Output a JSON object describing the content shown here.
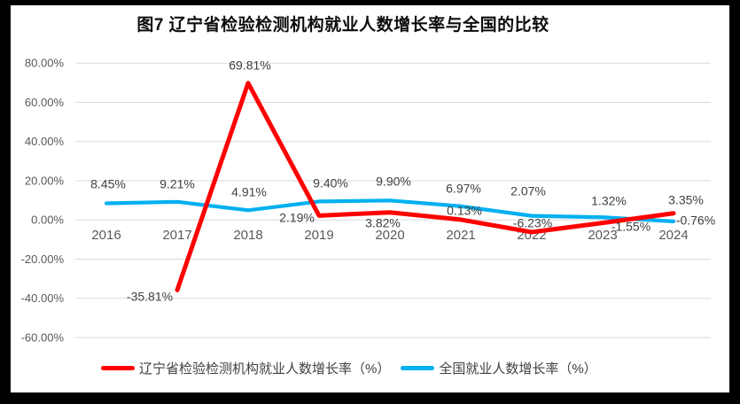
{
  "page": {
    "title": "图7  辽宁省检验检测机构就业人数增长率与全国的比较"
  },
  "chart_data": {
    "type": "line",
    "title": "图7  辽宁省检验检测机构就业人数增长率与全国的比较",
    "categories": [
      "2016",
      "2017",
      "2018",
      "2019",
      "2020",
      "2021",
      "2022",
      "2023",
      "2024"
    ],
    "series": [
      {
        "name": "辽宁省检验检测机构就业人数增长率（%）",
        "color": "#FF0000",
        "values": [
          null,
          -35.81,
          69.81,
          2.19,
          3.82,
          0.13,
          -6.23,
          -1.55,
          3.35
        ],
        "labels": [
          "",
          "-35.81%",
          "69.81%",
          "2.19%",
          "3.82%",
          "0.13%",
          "-6.23%",
          "-1.55%",
          "3.35%"
        ]
      },
      {
        "name": "全国就业人数增长率（%）",
        "color": "#00B0F0",
        "values": [
          8.45,
          9.21,
          4.91,
          9.4,
          9.9,
          6.97,
          2.07,
          1.32,
          -0.76
        ],
        "labels": [
          "8.45%",
          "9.21%",
          "4.91%",
          "9.40%",
          "9.90%",
          "6.97%",
          "2.07%",
          "1.32%",
          "-0.76%"
        ]
      }
    ],
    "y_axis": {
      "min": -60,
      "max": 80,
      "step": 20,
      "tick_labels": [
        "80.00%",
        "60.00%",
        "40.00%",
        "20.00%",
        "0.00%",
        "-20.00%",
        "-40.00%",
        "-60.00%"
      ]
    },
    "x_axis": {
      "tick_labels": [
        "2016",
        "2017",
        "2018",
        "2019",
        "2020",
        "2021",
        "2022",
        "2023",
        "2024"
      ]
    },
    "grid": true,
    "legend_position": "bottom",
    "colors": {
      "gridline": "#D9D9D9",
      "axis_text": "#595959",
      "data_label_text": "#404040"
    }
  }
}
